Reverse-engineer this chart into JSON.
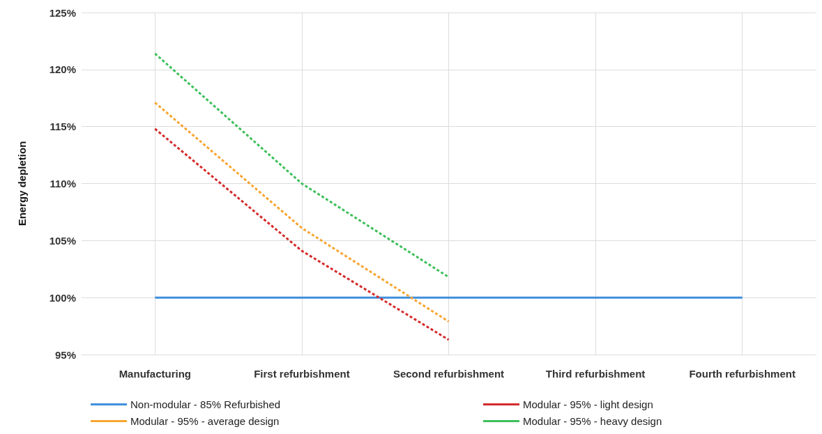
{
  "chart_data": {
    "type": "line",
    "ylabel": "Energy depletion",
    "categories": [
      "Manufacturing",
      "First refurbishment",
      "Second refurbishment",
      "Third refurbishment",
      "Fourth refurbishment"
    ],
    "series": [
      {
        "name": "Non-modular - 85% Refurbished",
        "color": "#3f8fdc",
        "line_style": "solid",
        "values": [
          100,
          100,
          100,
          100,
          100
        ]
      },
      {
        "name": "Modular - 95% - light design",
        "color": "#d42a2a",
        "line_style": "dashed",
        "values": [
          114.8,
          104.1,
          96.3,
          null,
          null
        ]
      },
      {
        "name": "Modular - 95% - average design",
        "color": "#f7a530",
        "line_style": "dashed",
        "values": [
          117.1,
          106.1,
          97.9,
          null,
          null
        ]
      },
      {
        "name": "Modular - 95% - heavy design",
        "color": "#3dbf5a",
        "line_style": "dashed",
        "values": [
          121.4,
          110,
          101.8,
          null,
          null
        ]
      }
    ],
    "ylim": [
      95,
      125
    ],
    "yticks": [
      {
        "value": 95,
        "label": "95%"
      },
      {
        "value": 100,
        "label": "100%"
      },
      {
        "value": 105,
        "label": "105%"
      },
      {
        "value": 110,
        "label": "110%"
      },
      {
        "value": 115,
        "label": "115%"
      },
      {
        "value": 120,
        "label": "120%"
      },
      {
        "value": 125,
        "label": "125%"
      }
    ],
    "grid": true,
    "legend": "bottom",
    "marker": "none"
  }
}
